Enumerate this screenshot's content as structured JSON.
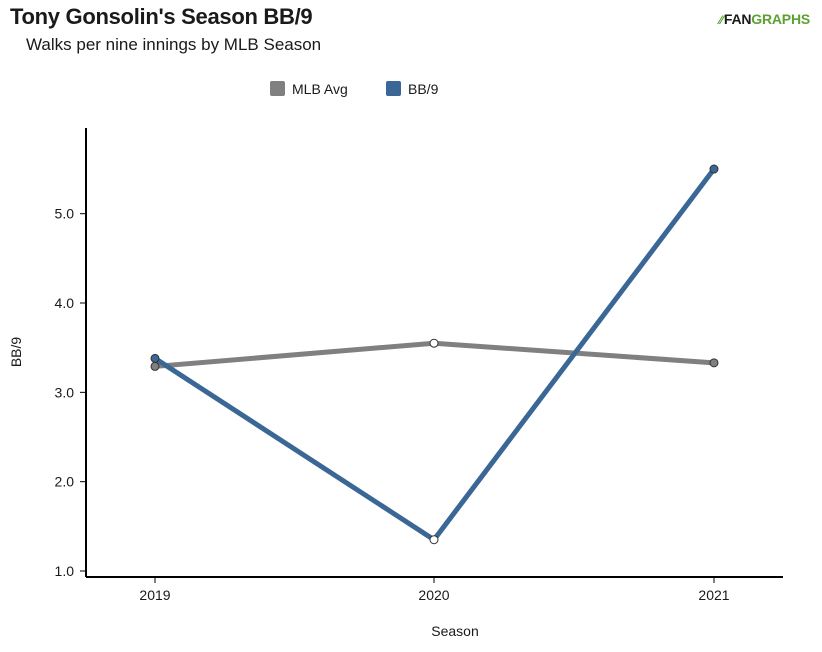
{
  "header": {
    "title": "Tony Gonsolin's Season BB/9",
    "subtitle": "Walks per nine innings by MLB Season",
    "logo_prefix": "FAN",
    "logo_suffix": "GRAPHS"
  },
  "chart_data": {
    "type": "line",
    "title": "Tony Gonsolin's Season BB/9",
    "subtitle": "Walks per nine innings by MLB Season",
    "xlabel": "Season",
    "ylabel": "BB/9",
    "categories": [
      "2019",
      "2020",
      "2021"
    ],
    "yticks": [
      "1.0",
      "2.0",
      "3.0",
      "4.0",
      "5.0"
    ],
    "ylim": [
      1.0,
      5.75
    ],
    "legend_position": "top-center",
    "grid": false,
    "series": [
      {
        "name": "MLB Avg",
        "color": "#808080",
        "values": [
          3.29,
          3.55,
          3.33
        ]
      },
      {
        "name": "BB/9",
        "color": "#3a6796",
        "values": [
          3.38,
          1.35,
          5.5
        ]
      }
    ]
  }
}
